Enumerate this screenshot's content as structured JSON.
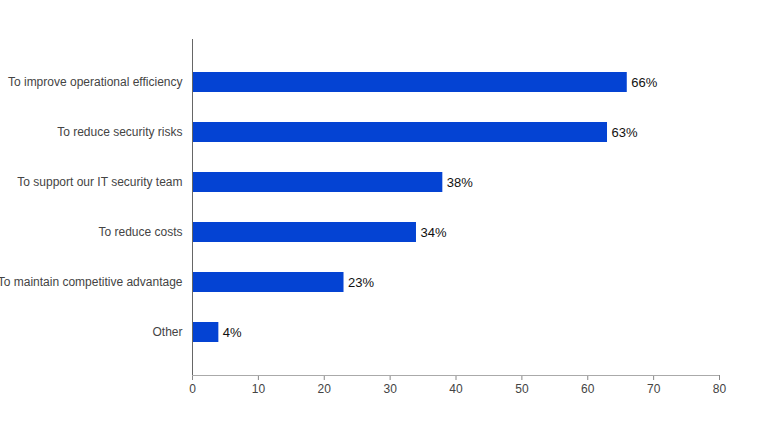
{
  "chart_data": {
    "type": "bar",
    "orientation": "horizontal",
    "categories": [
      "To improve operational efficiency",
      "To reduce security risks",
      "To support our IT security team",
      "To reduce costs",
      "To maintain competitive advantage",
      "Other"
    ],
    "values": [
      66,
      63,
      38,
      34,
      23,
      4
    ],
    "value_labels": [
      "66%",
      "63%",
      "38%",
      "34%",
      "23%",
      "4%"
    ],
    "data_labels": true,
    "color": "#0443d3",
    "xlim": [
      0,
      80
    ],
    "xticks": [
      0,
      10,
      20,
      30,
      40,
      50,
      60,
      70,
      80
    ],
    "grid": false
  }
}
